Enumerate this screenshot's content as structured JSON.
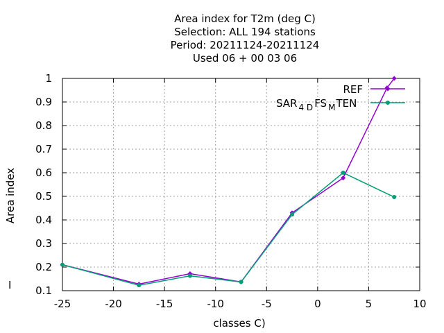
{
  "title_lines": [
    "Area index  for T2m (deg C)",
    "Selection: ALL    194 stations",
    "Period: 20211124-20211124",
    "Used  06 + 00 03 06"
  ],
  "chart_data": {
    "type": "line",
    "xlabel": "classes C)",
    "ylabel": "Area index",
    "xlim": [
      -25,
      10
    ],
    "ylim": [
      0.1,
      1
    ],
    "xticks": [
      -25,
      -20,
      -15,
      -10,
      -5,
      0,
      5,
      10
    ],
    "yticks": [
      0.1,
      0.2,
      0.3,
      0.4,
      0.5,
      0.6,
      0.7,
      0.8,
      0.9,
      1
    ],
    "grid": true,
    "legend_position": "top-right",
    "series": [
      {
        "name": "REF",
        "color": "#9400d3",
        "x": [
          -25,
          -17.5,
          -12.5,
          -7.5,
          -2.5,
          2.5,
          6.8,
          7.5
        ],
        "y": [
          0.21,
          0.128,
          0.172,
          0.137,
          0.43,
          0.578,
          0.96,
          1.0
        ]
      },
      {
        "name": "SAR_4D FS_M TEN",
        "color": "#009e73",
        "x": [
          -25,
          -17.5,
          -12.5,
          -7.5,
          -2.5,
          2.5,
          7.5
        ],
        "y": [
          0.21,
          0.123,
          0.163,
          0.137,
          0.423,
          0.6,
          0.497
        ]
      }
    ]
  },
  "legend": {
    "ref_label": "REF",
    "sar_main": "SAR",
    "sar_sub1": "4 D",
    "sar_mid": "FS",
    "sar_sub2": "M",
    "sar_end": "TEN"
  },
  "side_mark": "I"
}
